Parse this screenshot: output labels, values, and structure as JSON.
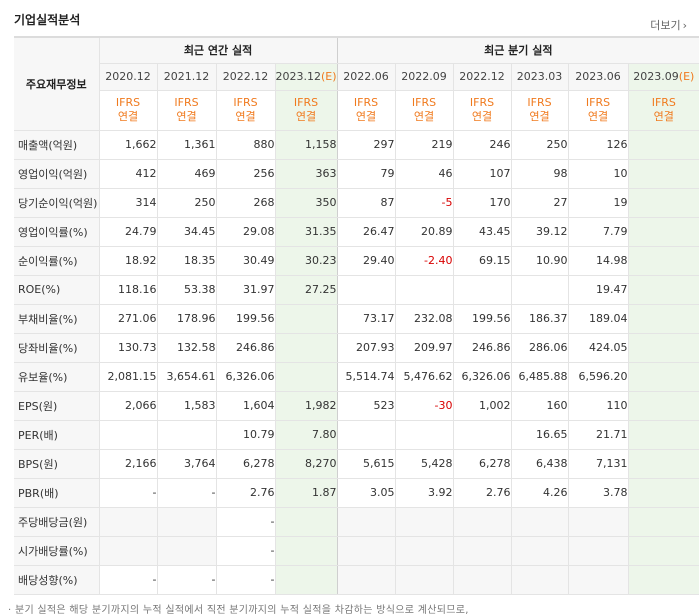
{
  "header": {
    "title": "기업실적분석",
    "more_label": "더보기",
    "more_icon": "chevron-right-icon"
  },
  "table": {
    "corner_label": "주요재무정보",
    "group_annual": "최근 연간 실적",
    "group_quarter": "최근 분기 실적",
    "periods": [
      "2020.12",
      "2021.12",
      "2022.12",
      "2023.12",
      "2022.06",
      "2022.09",
      "2022.12",
      "2023.03",
      "2023.06",
      "2023.09"
    ],
    "estimate_marker": "(E)",
    "standard": "IFRS",
    "consolidation": "연결",
    "rows": [
      {
        "label": "매출액(억원)",
        "values": [
          "1,662",
          "1,361",
          "880",
          "1,158",
          "297",
          "219",
          "246",
          "250",
          "126",
          ""
        ]
      },
      {
        "label": "영업이익(억원)",
        "values": [
          "412",
          "469",
          "256",
          "363",
          "79",
          "46",
          "107",
          "98",
          "10",
          ""
        ]
      },
      {
        "label": "당기순이익(억원)",
        "values": [
          "314",
          "250",
          "268",
          "350",
          "87",
          "-5",
          "170",
          "27",
          "19",
          ""
        ]
      },
      {
        "label": "영업이익률(%)",
        "values": [
          "24.79",
          "34.45",
          "29.08",
          "31.35",
          "26.47",
          "20.89",
          "43.45",
          "39.12",
          "7.79",
          ""
        ]
      },
      {
        "label": "순이익률(%)",
        "values": [
          "18.92",
          "18.35",
          "30.49",
          "30.23",
          "29.40",
          "-2.40",
          "69.15",
          "10.90",
          "14.98",
          ""
        ]
      },
      {
        "label": "ROE(%)",
        "values": [
          "118.16",
          "53.38",
          "31.97",
          "27.25",
          "",
          "",
          "",
          "",
          "19.47",
          ""
        ]
      },
      {
        "label": "부채비율(%)",
        "values": [
          "271.06",
          "178.96",
          "199.56",
          "",
          "73.17",
          "232.08",
          "199.56",
          "186.37",
          "189.04",
          ""
        ]
      },
      {
        "label": "당좌비율(%)",
        "values": [
          "130.73",
          "132.58",
          "246.86",
          "",
          "207.93",
          "209.97",
          "246.86",
          "286.06",
          "424.05",
          ""
        ]
      },
      {
        "label": "유보율(%)",
        "values": [
          "2,081.15",
          "3,654.61",
          "6,326.06",
          "",
          "5,514.74",
          "5,476.62",
          "6,326.06",
          "6,485.88",
          "6,596.20",
          ""
        ]
      },
      {
        "label": "EPS(원)",
        "values": [
          "2,066",
          "1,583",
          "1,604",
          "1,982",
          "523",
          "-30",
          "1,002",
          "160",
          "110",
          ""
        ]
      },
      {
        "label": "PER(배)",
        "values": [
          "",
          "",
          "10.79",
          "7.80",
          "",
          "",
          "",
          "16.65",
          "21.71",
          ""
        ]
      },
      {
        "label": "BPS(원)",
        "values": [
          "2,166",
          "3,764",
          "6,278",
          "8,270",
          "5,615",
          "5,428",
          "6,278",
          "6,438",
          "7,131",
          ""
        ]
      },
      {
        "label": "PBR(배)",
        "values": [
          "-",
          "-",
          "2.76",
          "1.87",
          "3.05",
          "3.92",
          "2.76",
          "4.26",
          "3.78",
          ""
        ]
      },
      {
        "label": "주당배당금(원)",
        "values": [
          "",
          "",
          "-",
          "",
          "",
          "",
          "",
          "",
          "",
          ""
        ]
      },
      {
        "label": "시가배당률(%)",
        "values": [
          "",
          "",
          "-",
          "",
          "",
          "",
          "",
          "",
          "",
          ""
        ]
      },
      {
        "label": "배당성향(%)",
        "values": [
          "-",
          "-",
          "-",
          "",
          "",
          "",
          "",
          "",
          "",
          ""
        ]
      }
    ]
  },
  "footnote": "· 분기 실적은 해당 분기까지의 누적 실적에서 직전 분기까지의 누적 실적을 차감하는 방식으로 계산되므로,",
  "colors": {
    "accent_orange": "#f07a1e",
    "negative_red": "#d80000",
    "estimate_bg": "#edf6ea",
    "label_bg": "#f7f7f7"
  }
}
